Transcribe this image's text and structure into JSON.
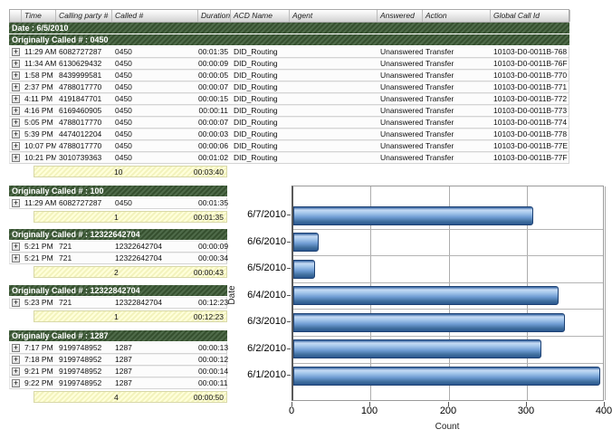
{
  "report": {
    "columns": [
      "",
      "Time",
      "Calling party #",
      "Called #",
      "Duration",
      "ACD Name",
      "Agent",
      "Answered",
      "Action",
      "Global Call Id"
    ],
    "date_header": "Date : 6/5/2010",
    "expand_icon": "+",
    "groups": [
      {
        "header": "Originally Called # : 0450",
        "full_width": true,
        "rows": [
          [
            "11:29 AM",
            "6082727287",
            "0450",
            "00:01:35",
            "DID_Routing",
            "",
            "Unanswered",
            "Transfer",
            "10103-D0-0011B-768"
          ],
          [
            "11:34 AM",
            "6130629432",
            "0450",
            "00:00:09",
            "DID_Routing",
            "",
            "Unanswered",
            "Transfer",
            "10103-D0-0011B-76F"
          ],
          [
            "1:58 PM",
            "8439999581",
            "0450",
            "00:00:05",
            "DID_Routing",
            "",
            "Unanswered",
            "Transfer",
            "10103-D0-0011B-770"
          ],
          [
            "2:37 PM",
            "4788017770",
            "0450",
            "00:00:07",
            "DID_Routing",
            "",
            "Unanswered",
            "Transfer",
            "10103-D0-0011B-771"
          ],
          [
            "4:11 PM",
            "4191847701",
            "0450",
            "00:00:15",
            "DID_Routing",
            "",
            "Unanswered",
            "Transfer",
            "10103-D0-0011B-772"
          ],
          [
            "4:16 PM",
            "6169460905",
            "0450",
            "00:00:11",
            "DID_Routing",
            "",
            "Unanswered",
            "Transfer",
            "10103-D0-0011B-773"
          ],
          [
            "5:05 PM",
            "4788017770",
            "0450",
            "00:00:07",
            "DID_Routing",
            "",
            "Unanswered",
            "Transfer",
            "10103-D0-0011B-774"
          ],
          [
            "5:39 PM",
            "4474012204",
            "0450",
            "00:00:03",
            "DID_Routing",
            "",
            "Unanswered",
            "Transfer",
            "10103-D0-0011B-778"
          ],
          [
            "10:07 PM",
            "4788017770",
            "0450",
            "00:00:06",
            "DID_Routing",
            "",
            "Unanswered",
            "Transfer",
            "10103-D0-0011B-77E"
          ],
          [
            "10:21 PM",
            "3010739363",
            "0450",
            "00:01:02",
            "DID_Routing",
            "",
            "Unanswered",
            "Transfer",
            "10103-D0-0011B-77F"
          ]
        ],
        "summary": {
          "count": "10",
          "duration": "00:03:40"
        }
      },
      {
        "header": "Originally Called # : 100",
        "full_width": false,
        "rows": [
          [
            "11:29 AM",
            "6082727287",
            "0450",
            "00:01:35"
          ]
        ],
        "summary": {
          "count": "1",
          "duration": "00:01:35"
        }
      },
      {
        "header": "Originally Called # : 12322642704",
        "full_width": false,
        "rows": [
          [
            "5:21 PM",
            "721",
            "12322642704",
            "00:00:09"
          ],
          [
            "5:21 PM",
            "721",
            "12322642704",
            "00:00:34"
          ]
        ],
        "summary": {
          "count": "2",
          "duration": "00:00:43"
        }
      },
      {
        "header": "Originally Called # : 12322842704",
        "full_width": false,
        "rows": [
          [
            "5:23 PM",
            "721",
            "12322842704",
            "00:12:23"
          ]
        ],
        "summary": {
          "count": "1",
          "duration": "00:12:23"
        }
      },
      {
        "header": "Originally Called # : 1287",
        "full_width": false,
        "rows": [
          [
            "7:17 PM",
            "9199748952",
            "1287",
            "00:00:13"
          ],
          [
            "7:18 PM",
            "9199748952",
            "1287",
            "00:00:12"
          ],
          [
            "9:21 PM",
            "9199748952",
            "1287",
            "00:00:14"
          ],
          [
            "9:22 PM",
            "9199748952",
            "1287",
            "00:00:11"
          ]
        ],
        "summary": {
          "count": "4",
          "duration": "00:00:50"
        }
      }
    ]
  },
  "chart_data": {
    "type": "bar",
    "orientation": "horizontal",
    "categories": [
      "6/7/2010",
      "6/6/2010",
      "6/5/2010",
      "6/4/2010",
      "6/3/2010",
      "6/2/2010",
      "6/1/2010"
    ],
    "values": [
      307,
      33,
      28,
      340,
      348,
      318,
      393
    ],
    "title": "",
    "xlabel": "Count",
    "ylabel": "Date",
    "xlim": [
      0,
      400
    ],
    "xticks": [
      0,
      100,
      200,
      300,
      400
    ],
    "grid": true,
    "legend": false,
    "bar_color": "#6f9cd3"
  },
  "colors": {
    "group_header_green": "#42603b",
    "summary_yellow": "#ffffcc",
    "bar_blue": "#6f9cd3",
    "bar_border": "#1d4173"
  }
}
